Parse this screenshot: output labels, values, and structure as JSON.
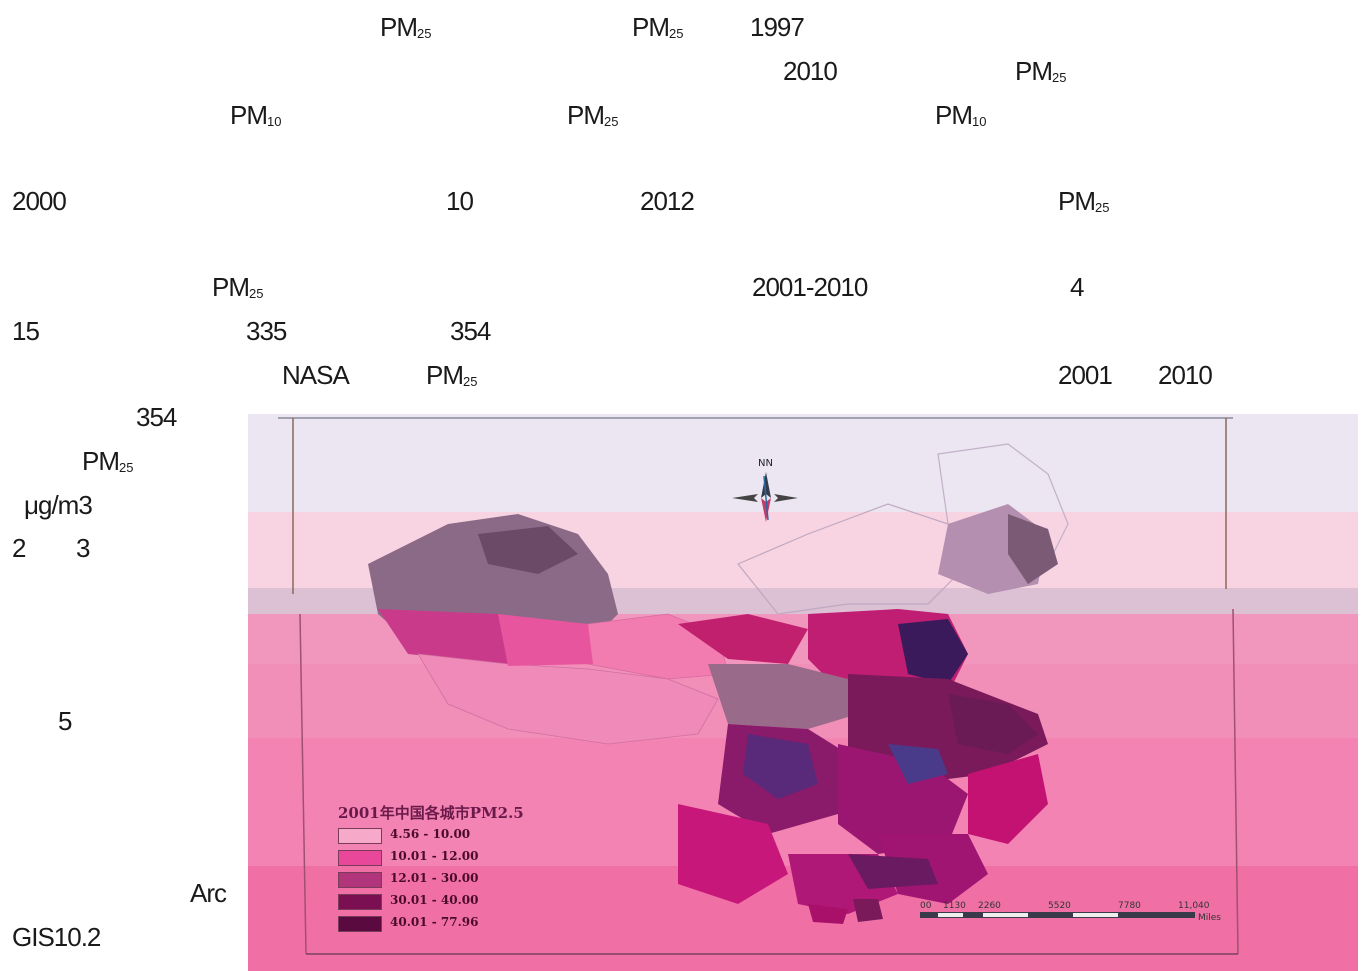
{
  "text_fragments": [
    {
      "id": "f1",
      "parts": [
        {
          "t": "PM"
        },
        {
          "sub": "25"
        }
      ]
    },
    {
      "id": "f2",
      "parts": [
        {
          "t": "PM"
        },
        {
          "sub": "25"
        }
      ]
    },
    {
      "id": "f3",
      "parts": [
        {
          "t": "1997"
        }
      ]
    },
    {
      "id": "f4",
      "parts": [
        {
          "t": "2010"
        }
      ]
    },
    {
      "id": "f5",
      "parts": [
        {
          "t": "PM"
        },
        {
          "sub": "25"
        }
      ]
    },
    {
      "id": "f6",
      "parts": [
        {
          "t": "PM"
        },
        {
          "sub": "10"
        }
      ]
    },
    {
      "id": "f7",
      "parts": [
        {
          "t": "PM"
        },
        {
          "sub": "25"
        }
      ]
    },
    {
      "id": "f8",
      "parts": [
        {
          "t": "PM"
        },
        {
          "sub": "10"
        }
      ]
    },
    {
      "id": "f9",
      "parts": [
        {
          "t": "2000"
        }
      ]
    },
    {
      "id": "f10",
      "parts": [
        {
          "t": "10"
        }
      ]
    },
    {
      "id": "f11",
      "parts": [
        {
          "t": "2012"
        }
      ]
    },
    {
      "id": "f12",
      "parts": [
        {
          "t": "PM"
        },
        {
          "sub": "25"
        }
      ]
    },
    {
      "id": "f13",
      "parts": [
        {
          "t": "PM"
        },
        {
          "sub": "25"
        }
      ]
    },
    {
      "id": "f14",
      "parts": [
        {
          "t": "2001-2010"
        }
      ]
    },
    {
      "id": "f15",
      "parts": [
        {
          "t": "4"
        }
      ]
    },
    {
      "id": "f16",
      "parts": [
        {
          "t": "15"
        }
      ]
    },
    {
      "id": "f17",
      "parts": [
        {
          "t": "335"
        }
      ]
    },
    {
      "id": "f18",
      "parts": [
        {
          "t": "354"
        }
      ]
    },
    {
      "id": "f19",
      "parts": [
        {
          "t": "NASA"
        }
      ]
    },
    {
      "id": "f20",
      "parts": [
        {
          "t": "PM"
        },
        {
          "sub": "25"
        }
      ]
    },
    {
      "id": "f21",
      "parts": [
        {
          "t": "2001"
        }
      ]
    },
    {
      "id": "f22",
      "parts": [
        {
          "t": "2010"
        }
      ]
    },
    {
      "id": "f23",
      "parts": [
        {
          "t": "354"
        }
      ]
    },
    {
      "id": "f24",
      "parts": [
        {
          "t": "PM"
        },
        {
          "sub": "25"
        }
      ]
    },
    {
      "id": "f25",
      "parts": [
        {
          "t": "μg/m3"
        }
      ]
    },
    {
      "id": "f26",
      "parts": [
        {
          "t": "2"
        }
      ]
    },
    {
      "id": "f27",
      "parts": [
        {
          "t": "3"
        }
      ]
    },
    {
      "id": "f28",
      "parts": [
        {
          "t": "5"
        }
      ]
    },
    {
      "id": "f29",
      "parts": [
        {
          "t": "Arc"
        }
      ]
    },
    {
      "id": "f30",
      "parts": [
        {
          "t": "GIS10.2"
        }
      ]
    }
  ],
  "map": {
    "legend_title": "2001年中国各城市PM2.5",
    "legend": [
      {
        "label": "4.56 - 10.00",
        "color": "#f6a9c8"
      },
      {
        "label": "10.01 - 12.00",
        "color": "#e8479a"
      },
      {
        "label": "12.01 - 30.00",
        "color": "#b0357a"
      },
      {
        "label": "30.01 - 40.00",
        "color": "#7a0f52"
      },
      {
        "label": "40.01 - 77.96",
        "color": "#5a0a3e"
      }
    ],
    "north_label": "NN",
    "scale_labels": [
      "00",
      "1130",
      "2260",
      "5520",
      "7780",
      "11,040"
    ],
    "scale_unit": "Miles"
  }
}
